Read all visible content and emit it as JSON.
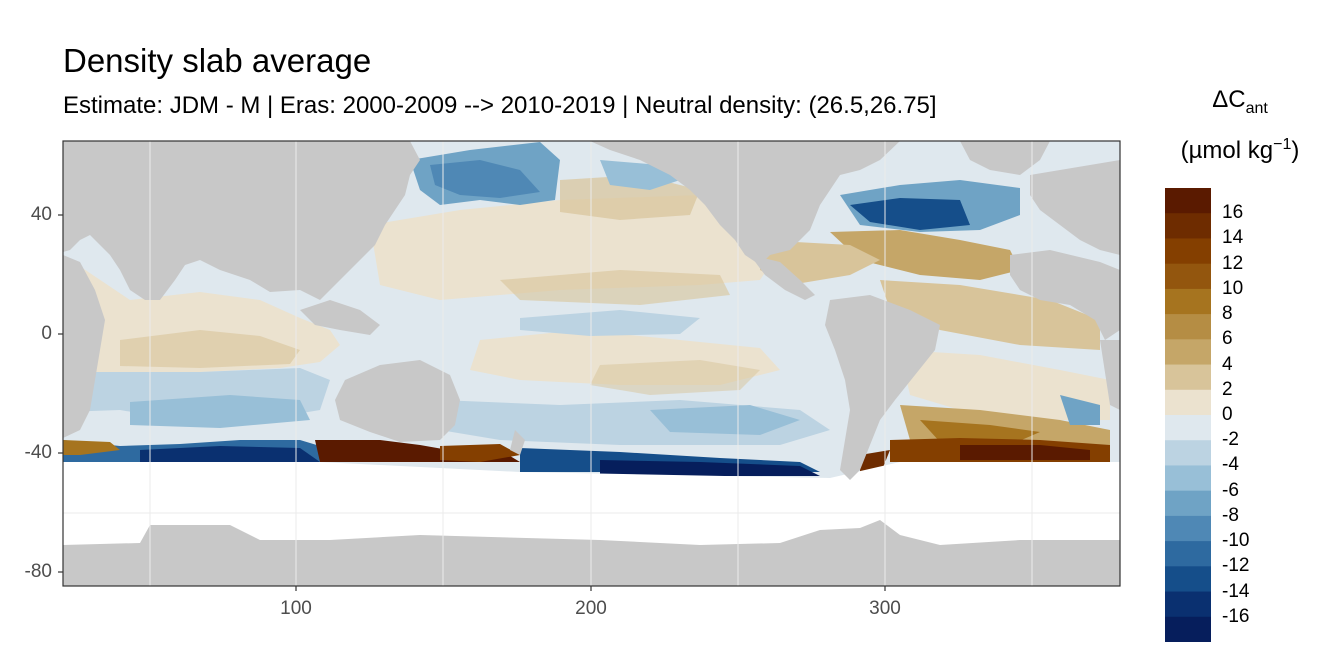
{
  "title": "Density slab average",
  "subtitle": "Estimate: JDM - M | Eras: 2000-2009 --> 2010-2019 | Neutral density: (26.5,26.75]",
  "legend": {
    "symbol": "ΔC",
    "symbol_sub": "ant",
    "unit_prefix": "(µmol kg",
    "unit_sup": "−1",
    "unit_suffix": ")",
    "ticks": [
      "16",
      "14",
      "12",
      "10",
      "8",
      "6",
      "4",
      "2",
      "0",
      "-2",
      "-4",
      "-6",
      "-8",
      "-10",
      "-12",
      "-14",
      "-16"
    ],
    "colors": [
      "#5a1a00",
      "#6e2c00",
      "#843f00",
      "#93560e",
      "#a6741f",
      "#b58d44",
      "#c5a668",
      "#d8c49a",
      "#ebe2cf",
      "#dfe8ee",
      "#bcd3e2",
      "#98bfd7",
      "#6fa3c5",
      "#4f88b5",
      "#2e6aa0",
      "#154e8a",
      "#0a3070",
      "#061e5c"
    ]
  },
  "axes": {
    "x_ticks": [
      "100",
      "200",
      "300"
    ],
    "y_ticks": [
      "40",
      "0",
      "-40",
      "-80"
    ],
    "xlim": [
      20,
      383
    ],
    "ylim": [
      -85,
      65
    ]
  },
  "colors": {
    "land": "#c8c8c8",
    "no_data": "#ffffff",
    "gridline": "#ebebeb",
    "panel_border": "#333333"
  }
}
